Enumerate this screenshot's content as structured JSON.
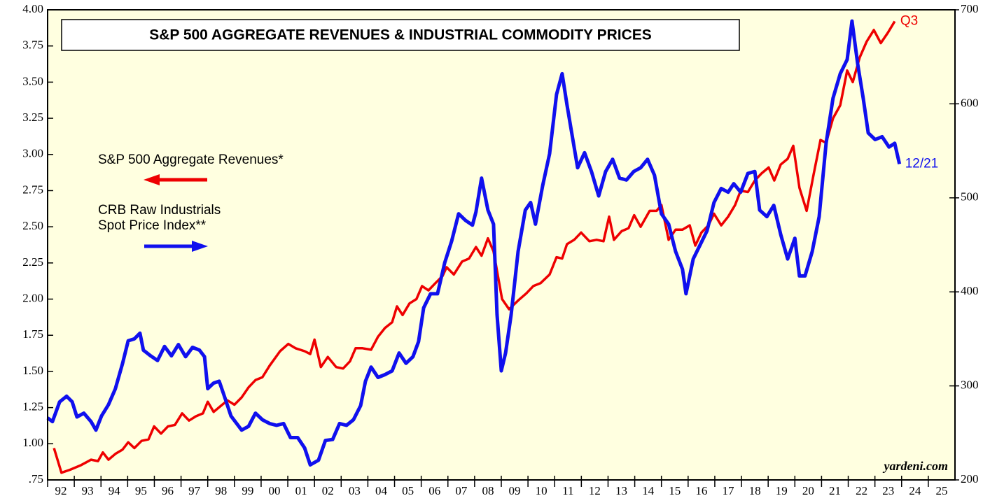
{
  "chart_data": {
    "type": "line",
    "title": "S&P 500 AGGREGATE REVENUES & INDUSTRIAL COMMODITY PRICES",
    "source": "yardeni.com",
    "xlim": [
      1992,
      2026
    ],
    "xticks": [
      {
        "value": 1992,
        "label": "92"
      },
      {
        "value": 1993,
        "label": "93"
      },
      {
        "value": 1994,
        "label": "94"
      },
      {
        "value": 1995,
        "label": "95"
      },
      {
        "value": 1996,
        "label": "96"
      },
      {
        "value": 1997,
        "label": "97"
      },
      {
        "value": 1998,
        "label": "98"
      },
      {
        "value": 1999,
        "label": "99"
      },
      {
        "value": 2000,
        "label": "00"
      },
      {
        "value": 2001,
        "label": "01"
      },
      {
        "value": 2002,
        "label": "02"
      },
      {
        "value": 2003,
        "label": "03"
      },
      {
        "value": 2004,
        "label": "04"
      },
      {
        "value": 2005,
        "label": "05"
      },
      {
        "value": 2006,
        "label": "06"
      },
      {
        "value": 2007,
        "label": "07"
      },
      {
        "value": 2008,
        "label": "08"
      },
      {
        "value": 2009,
        "label": "09"
      },
      {
        "value": 2010,
        "label": "10"
      },
      {
        "value": 2011,
        "label": "11"
      },
      {
        "value": 2012,
        "label": "12"
      },
      {
        "value": 2013,
        "label": "13"
      },
      {
        "value": 2014,
        "label": "14"
      },
      {
        "value": 2015,
        "label": "15"
      },
      {
        "value": 2016,
        "label": "16"
      },
      {
        "value": 2017,
        "label": "17"
      },
      {
        "value": 2018,
        "label": "18"
      },
      {
        "value": 2019,
        "label": "19"
      },
      {
        "value": 2020,
        "label": "20"
      },
      {
        "value": 2021,
        "label": "21"
      },
      {
        "value": 2022,
        "label": "22"
      },
      {
        "value": 2023,
        "label": "23"
      },
      {
        "value": 2024,
        "label": "24"
      },
      {
        "value": 2025,
        "label": "25"
      }
    ],
    "ylim": [
      0.75,
      4.0
    ],
    "yticks": [
      {
        "value": 0.75,
        "label": ".75"
      },
      {
        "value": 1.0,
        "label": "1.00"
      },
      {
        "value": 1.25,
        "label": "1.25"
      },
      {
        "value": 1.5,
        "label": "1.50"
      },
      {
        "value": 1.75,
        "label": "1.75"
      },
      {
        "value": 2.0,
        "label": "2.00"
      },
      {
        "value": 2.25,
        "label": "2.25"
      },
      {
        "value": 2.5,
        "label": "2.50"
      },
      {
        "value": 2.75,
        "label": "2.75"
      },
      {
        "value": 3.0,
        "label": "3.00"
      },
      {
        "value": 3.25,
        "label": "3.25"
      },
      {
        "value": 3.5,
        "label": "3.50"
      },
      {
        "value": 3.75,
        "label": "3.75"
      },
      {
        "value": 4.0,
        "label": "4.00"
      }
    ],
    "y2lim": [
      200,
      700
    ],
    "y2ticks": [
      200,
      300,
      400,
      500,
      600,
      700
    ],
    "grid": false,
    "series": [
      {
        "name": "S&P 500 Aggregate Revenues*",
        "color": "#ee0000",
        "axis": "y",
        "end_label": "Q3",
        "x": [
          1992.24,
          1992.52,
          1992.84,
          1993.23,
          1993.63,
          1993.89,
          1994.07,
          1994.28,
          1994.54,
          1994.81,
          1995.02,
          1995.25,
          1995.52,
          1995.78,
          1995.99,
          1996.25,
          1996.51,
          1996.77,
          1997.04,
          1997.3,
          1997.56,
          1997.82,
          1998.0,
          1998.22,
          1998.48,
          1998.74,
          1999.0,
          1999.27,
          1999.53,
          1999.79,
          2000.05,
          2000.32,
          2000.71,
          2001.02,
          2001.29,
          2001.63,
          2001.84,
          2002.0,
          2002.24,
          2002.5,
          2002.81,
          2003.07,
          2003.33,
          2003.54,
          2003.8,
          2004.12,
          2004.38,
          2004.64,
          2004.91,
          2005.09,
          2005.3,
          2005.56,
          2005.82,
          2006.03,
          2006.27,
          2006.53,
          2006.8,
          2006.95,
          2007.22,
          2007.53,
          2007.79,
          2008.05,
          2008.26,
          2008.5,
          2008.71,
          2009.03,
          2009.29,
          2009.63,
          2009.94,
          2010.2,
          2010.47,
          2010.81,
          2011.07,
          2011.28,
          2011.46,
          2011.73,
          2011.99,
          2012.3,
          2012.57,
          2012.83,
          2013.04,
          2013.22,
          2013.51,
          2013.77,
          2013.98,
          2014.22,
          2014.56,
          2014.82,
          2015.0,
          2015.27,
          2015.53,
          2015.79,
          2016.06,
          2016.27,
          2016.5,
          2016.76,
          2016.97,
          2017.24,
          2017.5,
          2017.76,
          2017.97,
          2018.24,
          2018.5,
          2018.76,
          2019.02,
          2019.23,
          2019.47,
          2019.73,
          2019.94,
          2020.17,
          2020.44,
          2020.7,
          2020.96,
          2021.17,
          2021.43,
          2021.7,
          2021.96,
          2022.17,
          2022.43,
          2022.69,
          2022.96,
          2023.22,
          2023.48,
          2023.74
        ],
        "values": [
          0.97,
          0.8,
          0.82,
          0.85,
          0.89,
          0.88,
          0.94,
          0.89,
          0.93,
          0.96,
          1.01,
          0.97,
          1.02,
          1.03,
          1.12,
          1.07,
          1.12,
          1.13,
          1.21,
          1.16,
          1.19,
          1.21,
          1.29,
          1.22,
          1.26,
          1.3,
          1.27,
          1.32,
          1.39,
          1.44,
          1.46,
          1.54,
          1.64,
          1.69,
          1.66,
          1.64,
          1.62,
          1.72,
          1.53,
          1.6,
          1.53,
          1.52,
          1.57,
          1.66,
          1.66,
          1.65,
          1.74,
          1.8,
          1.84,
          1.95,
          1.89,
          1.97,
          2.0,
          2.09,
          2.06,
          2.11,
          2.16,
          2.22,
          2.17,
          2.26,
          2.28,
          2.36,
          2.3,
          2.42,
          2.33,
          2.0,
          1.93,
          1.99,
          2.04,
          2.09,
          2.11,
          2.17,
          2.29,
          2.28,
          2.38,
          2.41,
          2.46,
          2.4,
          2.41,
          2.4,
          2.57,
          2.41,
          2.47,
          2.49,
          2.58,
          2.5,
          2.61,
          2.61,
          2.65,
          2.41,
          2.48,
          2.48,
          2.51,
          2.37,
          2.46,
          2.51,
          2.59,
          2.51,
          2.57,
          2.65,
          2.75,
          2.74,
          2.82,
          2.87,
          2.91,
          2.82,
          2.93,
          2.97,
          3.06,
          2.77,
          2.61,
          2.86,
          3.1,
          3.08,
          3.25,
          3.34,
          3.58,
          3.5,
          3.67,
          3.78,
          3.86,
          3.77,
          3.84,
          3.92
        ]
      },
      {
        "name": "CRB Raw Industrials Spot Price Index**",
        "color": "#1010ee",
        "axis": "y2",
        "end_label": "12/21",
        "x": [
          1992.0,
          1992.18,
          1992.45,
          1992.71,
          1992.92,
          1993.1,
          1993.36,
          1993.63,
          1993.81,
          1994.02,
          1994.28,
          1994.54,
          1994.81,
          1995.02,
          1995.25,
          1995.46,
          1995.59,
          1995.86,
          1996.12,
          1996.38,
          1996.64,
          1996.9,
          1997.17,
          1997.43,
          1997.69,
          1997.88,
          1998.0,
          1998.22,
          1998.43,
          1998.61,
          1998.87,
          1999.27,
          1999.53,
          1999.79,
          2000.05,
          2000.32,
          2000.58,
          2000.84,
          2001.1,
          2001.37,
          2001.63,
          2001.84,
          2002.15,
          2002.41,
          2002.68,
          2002.94,
          2003.2,
          2003.46,
          2003.73,
          2003.91,
          2004.12,
          2004.38,
          2004.64,
          2004.91,
          2005.17,
          2005.43,
          2005.69,
          2005.9,
          2006.09,
          2006.35,
          2006.61,
          2006.88,
          2007.14,
          2007.4,
          2007.66,
          2007.92,
          2008.05,
          2008.26,
          2008.5,
          2008.71,
          2008.84,
          2009.0,
          2009.16,
          2009.37,
          2009.63,
          2009.9,
          2010.1,
          2010.28,
          2010.55,
          2010.81,
          2011.07,
          2011.28,
          2011.46,
          2011.68,
          2011.86,
          2012.12,
          2012.38,
          2012.65,
          2012.91,
          2013.17,
          2013.43,
          2013.69,
          2013.96,
          2014.22,
          2014.48,
          2014.74,
          2015.0,
          2015.27,
          2015.53,
          2015.79,
          2015.92,
          2016.19,
          2016.45,
          2016.71,
          2016.97,
          2017.24,
          2017.5,
          2017.71,
          2017.97,
          2018.24,
          2018.5,
          2018.68,
          2018.95,
          2019.21,
          2019.47,
          2019.73,
          2020.0,
          2020.17,
          2020.38,
          2020.65,
          2020.91,
          2021.17,
          2021.43,
          2021.7,
          2021.96,
          2022.14,
          2022.35,
          2022.56,
          2022.75,
          2023.01,
          2023.27,
          2023.53,
          2023.74,
          2023.92
        ],
        "values": [
          266,
          262,
          283,
          289,
          283,
          267,
          271,
          262,
          253,
          268,
          280,
          297,
          324,
          348,
          350,
          356,
          338,
          332,
          327,
          342,
          332,
          344,
          331,
          341,
          338,
          331,
          297,
          303,
          305,
          290,
          268,
          253,
          257,
          271,
          264,
          260,
          258,
          260,
          245,
          245,
          234,
          216,
          221,
          242,
          243,
          260,
          258,
          264,
          279,
          305,
          320,
          309,
          312,
          316,
          335,
          324,
          331,
          347,
          383,
          398,
          398,
          431,
          454,
          483,
          476,
          471,
          485,
          521,
          487,
          472,
          376,
          316,
          335,
          376,
          443,
          487,
          495,
          472,
          513,
          547,
          610,
          632,
          599,
          562,
          532,
          548,
          528,
          502,
          528,
          541,
          521,
          519,
          528,
          532,
          541,
          524,
          483,
          472,
          443,
          424,
          398,
          435,
          450,
          465,
          495,
          510,
          506,
          515,
          506,
          526,
          528,
          487,
          480,
          492,
          461,
          435,
          457,
          417,
          417,
          443,
          480,
          558,
          606,
          632,
          647,
          688,
          643,
          606,
          569,
          562,
          565,
          554,
          558,
          536
        ]
      }
    ]
  }
}
